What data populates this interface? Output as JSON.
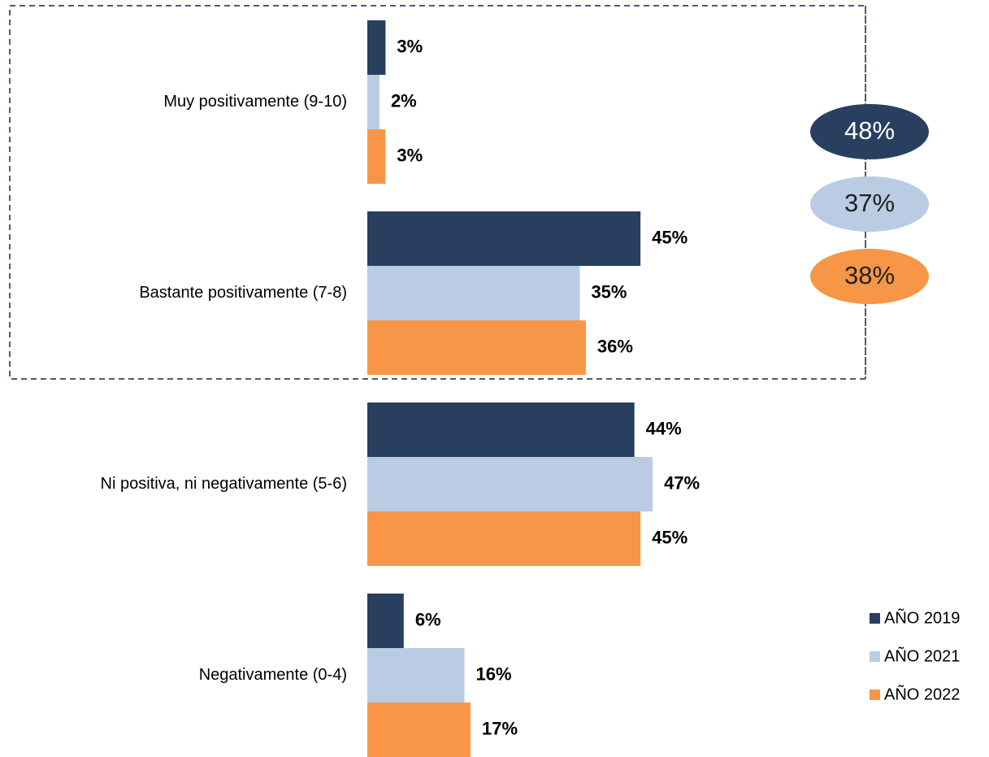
{
  "chart_data": {
    "type": "barh",
    "categories": [
      "Muy positivamente (9-10)",
      "Bastante positivamente (7-8)",
      "Ni positiva, ni negativamente (5-6)",
      "Negativamente (0-4)"
    ],
    "series": [
      {
        "name": "AÑO 2019",
        "color": "#283f5f",
        "values": [
          3,
          45,
          44,
          6
        ],
        "value_labels": [
          "3%",
          "45%",
          "44%",
          "6%"
        ]
      },
      {
        "name": "AÑO 2021",
        "color": "#b9cce4",
        "values": [
          2,
          35,
          47,
          16
        ],
        "value_labels": [
          "2%",
          "35%",
          "47%",
          "16%"
        ]
      },
      {
        "name": "AÑO 2022",
        "color": "#f79646",
        "values": [
          3,
          36,
          45,
          17
        ],
        "value_labels": [
          "3%",
          "36%",
          "45%",
          "17%"
        ]
      }
    ],
    "xlim": [
      0,
      100
    ],
    "annotations": [
      "48%",
      "37%",
      "38%"
    ],
    "legend": "bottom-right"
  }
}
